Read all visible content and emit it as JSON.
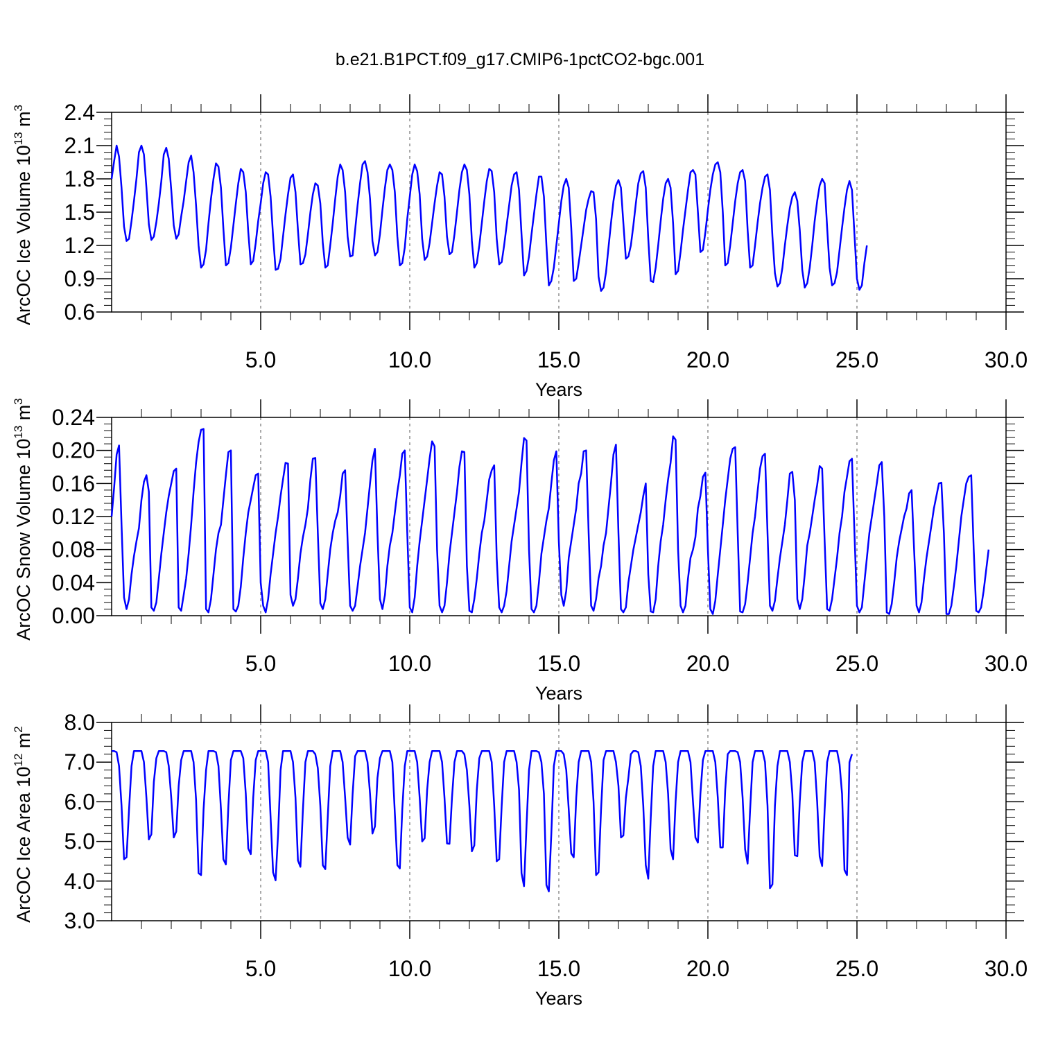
{
  "title": "b.e21.B1PCT.f09_g17.CMIP6-1pctCO2-bgc.001",
  "line_color": "#0000ff",
  "grid_style": "dashed vertical lines at major x ticks",
  "chart_data": [
    {
      "type": "line",
      "ylabel": {
        "base": "ArcOC Ice Volume 10",
        "exp": "13",
        "unit": " m",
        "unit_exp": "3"
      },
      "xlabel": "Years",
      "xlim": [
        0.0,
        30.0
      ],
      "ylim": [
        0.6,
        2.4
      ],
      "x_ticks": [
        "5.0",
        "10.0",
        "15.0",
        "20.0",
        "25.0",
        "30.0"
      ],
      "y_ticks": [
        "0.6",
        "0.9",
        "1.2",
        "1.5",
        "1.8",
        "2.1",
        "2.4"
      ],
      "series": [
        {
          "x_start": 0.0,
          "x_step": 0.08333,
          "values": [
            1.8,
            1.96,
            2.1,
            2.0,
            1.72,
            1.37,
            1.24,
            1.26,
            1.42,
            1.6,
            1.8,
            2.04,
            2.1,
            2.02,
            1.72,
            1.39,
            1.25,
            1.28,
            1.41,
            1.58,
            1.78,
            2.02,
            2.08,
            1.98,
            1.7,
            1.38,
            1.26,
            1.3,
            1.46,
            1.6,
            1.78,
            1.95,
            2.01,
            1.86,
            1.56,
            1.2,
            1.0,
            1.03,
            1.16,
            1.4,
            1.62,
            1.8,
            1.94,
            1.91,
            1.72,
            1.35,
            1.02,
            1.04,
            1.18,
            1.38,
            1.58,
            1.76,
            1.89,
            1.86,
            1.68,
            1.32,
            1.03,
            1.06,
            1.22,
            1.42,
            1.58,
            1.76,
            1.86,
            1.84,
            1.64,
            1.28,
            0.98,
            0.99,
            1.08,
            1.28,
            1.48,
            1.66,
            1.81,
            1.84,
            1.68,
            1.34,
            1.03,
            1.04,
            1.12,
            1.3,
            1.5,
            1.66,
            1.76,
            1.74,
            1.58,
            1.22,
            1.0,
            1.02,
            1.2,
            1.4,
            1.62,
            1.82,
            1.93,
            1.88,
            1.68,
            1.28,
            1.1,
            1.11,
            1.34,
            1.56,
            1.76,
            1.93,
            1.96,
            1.86,
            1.62,
            1.24,
            1.11,
            1.14,
            1.3,
            1.52,
            1.72,
            1.88,
            1.93,
            1.88,
            1.68,
            1.28,
            1.02,
            1.04,
            1.18,
            1.44,
            1.64,
            1.84,
            1.93,
            1.87,
            1.66,
            1.26,
            1.07,
            1.1,
            1.22,
            1.4,
            1.58,
            1.74,
            1.86,
            1.84,
            1.64,
            1.28,
            1.12,
            1.14,
            1.3,
            1.5,
            1.7,
            1.86,
            1.93,
            1.88,
            1.66,
            1.24,
            1.0,
            1.04,
            1.2,
            1.4,
            1.6,
            1.78,
            1.89,
            1.87,
            1.68,
            1.26,
            1.03,
            1.05,
            1.2,
            1.38,
            1.56,
            1.74,
            1.84,
            1.86,
            1.7,
            1.3,
            0.93,
            0.97,
            1.1,
            1.3,
            1.48,
            1.66,
            1.82,
            1.82,
            1.64,
            1.2,
            0.84,
            0.88,
            1.0,
            1.2,
            1.4,
            1.6,
            1.74,
            1.8,
            1.72,
            1.36,
            0.88,
            0.9,
            1.04,
            1.2,
            1.36,
            1.52,
            1.62,
            1.69,
            1.68,
            1.44,
            0.92,
            0.79,
            0.82,
            0.96,
            1.18,
            1.4,
            1.6,
            1.74,
            1.79,
            1.72,
            1.4,
            1.08,
            1.1,
            1.2,
            1.38,
            1.58,
            1.76,
            1.85,
            1.87,
            1.72,
            1.26,
            0.88,
            0.87,
            1.0,
            1.2,
            1.42,
            1.62,
            1.76,
            1.8,
            1.72,
            1.4,
            0.94,
            0.97,
            1.14,
            1.34,
            1.52,
            1.7,
            1.86,
            1.88,
            1.84,
            1.5,
            1.14,
            1.16,
            1.32,
            1.52,
            1.7,
            1.84,
            1.93,
            1.95,
            1.86,
            1.5,
            1.02,
            1.04,
            1.2,
            1.4,
            1.6,
            1.76,
            1.86,
            1.88,
            1.78,
            1.34,
            1.0,
            1.02,
            1.2,
            1.4,
            1.58,
            1.72,
            1.82,
            1.84,
            1.7,
            1.28,
            0.95,
            0.83,
            0.86,
            1.0,
            1.2,
            1.38,
            1.54,
            1.64,
            1.68,
            1.6,
            1.34,
            0.98,
            0.82,
            0.86,
            1.0,
            1.2,
            1.42,
            1.6,
            1.74,
            1.8,
            1.76,
            1.36,
            1.0,
            0.84,
            0.86,
            0.96,
            1.16,
            1.36,
            1.54,
            1.7,
            1.78,
            1.7,
            1.3,
            0.9,
            0.8,
            0.84,
            1.04,
            1.2
          ]
        }
      ]
    },
    {
      "type": "line",
      "ylabel": {
        "base": "ArcOC Snow Volume 10",
        "exp": "13",
        "unit": " m",
        "unit_exp": "3"
      },
      "xlabel": "Years",
      "xlim": [
        0.0,
        30.0
      ],
      "ylim": [
        0.0,
        0.24
      ],
      "x_ticks": [
        "5.0",
        "10.0",
        "15.0",
        "20.0",
        "25.0",
        "30.0"
      ],
      "y_ticks": [
        "0.00",
        "0.04",
        "0.08",
        "0.12",
        "0.16",
        "0.20",
        "0.24"
      ],
      "series": [
        {
          "x_start": 0.0,
          "x_step": 0.08333,
          "values": [
            0.12,
            0.155,
            0.195,
            0.206,
            0.11,
            0.022,
            0.008,
            0.02,
            0.05,
            0.072,
            0.09,
            0.106,
            0.14,
            0.162,
            0.17,
            0.15,
            0.01,
            0.006,
            0.016,
            0.045,
            0.075,
            0.1,
            0.125,
            0.145,
            0.16,
            0.175,
            0.178,
            0.01,
            0.006,
            0.025,
            0.045,
            0.075,
            0.11,
            0.15,
            0.185,
            0.21,
            0.225,
            0.226,
            0.008,
            0.004,
            0.02,
            0.05,
            0.08,
            0.1,
            0.11,
            0.14,
            0.17,
            0.198,
            0.2,
            0.008,
            0.005,
            0.012,
            0.035,
            0.07,
            0.1,
            0.125,
            0.14,
            0.155,
            0.17,
            0.172,
            0.04,
            0.012,
            0.004,
            0.02,
            0.05,
            0.075,
            0.1,
            0.12,
            0.145,
            0.165,
            0.185,
            0.184,
            0.025,
            0.012,
            0.02,
            0.045,
            0.075,
            0.095,
            0.11,
            0.13,
            0.165,
            0.19,
            0.191,
            0.1,
            0.015,
            0.008,
            0.02,
            0.05,
            0.08,
            0.1,
            0.115,
            0.125,
            0.145,
            0.172,
            0.176,
            0.09,
            0.012,
            0.006,
            0.012,
            0.035,
            0.06,
            0.08,
            0.1,
            0.13,
            0.16,
            0.188,
            0.202,
            0.1,
            0.02,
            0.008,
            0.025,
            0.06,
            0.085,
            0.1,
            0.125,
            0.15,
            0.17,
            0.196,
            0.2,
            0.1,
            0.01,
            0.004,
            0.022,
            0.06,
            0.09,
            0.115,
            0.14,
            0.165,
            0.19,
            0.211,
            0.205,
            0.08,
            0.012,
            0.004,
            0.012,
            0.04,
            0.075,
            0.1,
            0.125,
            0.15,
            0.18,
            0.199,
            0.198,
            0.06,
            0.006,
            0.004,
            0.02,
            0.045,
            0.075,
            0.1,
            0.115,
            0.14,
            0.165,
            0.176,
            0.182,
            0.07,
            0.01,
            0.004,
            0.012,
            0.03,
            0.06,
            0.09,
            0.11,
            0.13,
            0.15,
            0.185,
            0.215,
            0.212,
            0.08,
            0.008,
            0.004,
            0.012,
            0.04,
            0.075,
            0.095,
            0.115,
            0.13,
            0.16,
            0.188,
            0.199,
            0.09,
            0.025,
            0.012,
            0.03,
            0.07,
            0.09,
            0.11,
            0.13,
            0.16,
            0.172,
            0.199,
            0.2,
            0.1,
            0.012,
            0.006,
            0.02,
            0.045,
            0.06,
            0.085,
            0.1,
            0.13,
            0.16,
            0.195,
            0.207,
            0.1,
            0.008,
            0.004,
            0.01,
            0.04,
            0.06,
            0.08,
            0.095,
            0.11,
            0.125,
            0.145,
            0.16,
            0.05,
            0.005,
            0.004,
            0.02,
            0.06,
            0.09,
            0.11,
            0.14,
            0.165,
            0.185,
            0.217,
            0.213,
            0.08,
            0.012,
            0.004,
            0.012,
            0.045,
            0.07,
            0.08,
            0.095,
            0.13,
            0.145,
            0.168,
            0.173,
            0.08,
            0.008,
            0.002,
            0.018,
            0.05,
            0.08,
            0.11,
            0.14,
            0.165,
            0.19,
            0.202,
            0.204,
            0.1,
            0.005,
            0.004,
            0.014,
            0.04,
            0.07,
            0.1,
            0.12,
            0.15,
            0.178,
            0.193,
            0.196,
            0.1,
            0.012,
            0.006,
            0.018,
            0.045,
            0.07,
            0.09,
            0.11,
            0.14,
            0.172,
            0.174,
            0.14,
            0.02,
            0.008,
            0.02,
            0.05,
            0.085,
            0.1,
            0.12,
            0.14,
            0.158,
            0.181,
            0.178,
            0.09,
            0.008,
            0.006,
            0.02,
            0.045,
            0.07,
            0.1,
            0.12,
            0.15,
            0.168,
            0.187,
            0.19,
            0.1,
            0.012,
            0.004,
            0.01,
            0.04,
            0.07,
            0.1,
            0.12,
            0.14,
            0.16,
            0.182,
            0.186,
            0.12,
            0.004,
            0.002,
            0.014,
            0.04,
            0.07,
            0.09,
            0.105,
            0.12,
            0.13,
            0.148,
            0.152,
            0.08,
            0.012,
            0.004,
            0.016,
            0.045,
            0.07,
            0.09,
            0.11,
            0.13,
            0.145,
            0.16,
            0.161,
            0.1,
            0.002,
            0.002,
            0.012,
            0.035,
            0.06,
            0.09,
            0.12,
            0.14,
            0.16,
            0.168,
            0.17,
            0.08,
            0.006,
            0.004,
            0.01,
            0.03,
            0.055,
            0.08
          ]
        }
      ]
    },
    {
      "type": "line",
      "ylabel": {
        "base": "ArcOC Ice Area 10",
        "exp": "12",
        "unit": " m",
        "unit_exp": "2"
      },
      "xlabel": "Years",
      "xlim": [
        0.0,
        30.0
      ],
      "ylim": [
        3.0,
        8.0
      ],
      "x_ticks": [
        "5.0",
        "10.0",
        "15.0",
        "20.0",
        "25.0",
        "30.0"
      ],
      "y_ticks": [
        "3.0",
        "4.0",
        "5.0",
        "6.0",
        "7.0",
        "8.0"
      ],
      "series": [
        {
          "x_start": 0.0,
          "x_step": 0.08333,
          "values": [
            7.28,
            7.28,
            7.25,
            6.9,
            5.9,
            4.55,
            4.6,
            5.8,
            6.9,
            7.28,
            7.28,
            7.28,
            7.28,
            7.0,
            6.1,
            5.05,
            5.18,
            6.5,
            7.1,
            7.28,
            7.28,
            7.28,
            7.25,
            6.9,
            6.1,
            5.1,
            5.25,
            6.4,
            7.05,
            7.28,
            7.28,
            7.28,
            7.28,
            7.0,
            6.05,
            4.2,
            4.15,
            5.8,
            6.8,
            7.28,
            7.28,
            7.28,
            7.25,
            6.9,
            5.8,
            4.55,
            4.42,
            5.9,
            7.05,
            7.28,
            7.28,
            7.28,
            7.28,
            7.1,
            6.2,
            4.82,
            4.68,
            6.1,
            7.05,
            7.28,
            7.28,
            7.28,
            7.28,
            7.0,
            5.6,
            4.22,
            4.02,
            5.2,
            6.8,
            7.28,
            7.28,
            7.28,
            7.28,
            7.0,
            6.1,
            4.52,
            4.36,
            5.8,
            7.0,
            7.28,
            7.28,
            7.28,
            7.2,
            6.85,
            5.9,
            4.4,
            4.3,
            5.6,
            6.9,
            7.28,
            7.28,
            7.28,
            7.28,
            7.0,
            6.1,
            5.1,
            4.92,
            6.2,
            7.15,
            7.28,
            7.28,
            7.28,
            7.28,
            7.0,
            6.2,
            5.2,
            5.38,
            6.6,
            7.1,
            7.28,
            7.28,
            7.28,
            7.28,
            7.0,
            5.7,
            4.4,
            4.32,
            5.8,
            6.9,
            7.28,
            7.28,
            7.28,
            7.28,
            7.0,
            6.1,
            5.0,
            5.08,
            6.3,
            7.0,
            7.28,
            7.28,
            7.28,
            7.28,
            7.0,
            6.1,
            4.95,
            4.94,
            6.1,
            7.0,
            7.28,
            7.28,
            7.28,
            7.2,
            6.8,
            5.9,
            4.75,
            4.9,
            6.3,
            7.1,
            7.28,
            7.28,
            7.28,
            7.28,
            7.0,
            5.9,
            4.5,
            4.55,
            5.9,
            7.0,
            7.28,
            7.28,
            7.28,
            7.28,
            7.0,
            6.3,
            4.2,
            3.87,
            5.4,
            6.8,
            7.28,
            7.28,
            7.28,
            7.25,
            7.0,
            6.2,
            3.9,
            3.74,
            5.2,
            6.9,
            7.28,
            7.28,
            7.28,
            7.2,
            6.8,
            5.8,
            4.7,
            4.6,
            6.1,
            7.0,
            7.28,
            7.28,
            7.28,
            7.28,
            7.0,
            6.0,
            4.15,
            4.22,
            5.8,
            7.05,
            7.28,
            7.28,
            7.28,
            7.28,
            7.0,
            6.4,
            5.1,
            5.15,
            6.1,
            6.6,
            7.2,
            7.28,
            7.28,
            7.25,
            6.9,
            5.9,
            4.4,
            4.06,
            5.6,
            6.9,
            7.28,
            7.28,
            7.28,
            7.28,
            7.0,
            6.2,
            4.8,
            4.55,
            6.0,
            7.0,
            7.28,
            7.28,
            7.28,
            7.28,
            7.0,
            6.0,
            5.1,
            4.97,
            6.2,
            7.05,
            7.28,
            7.28,
            7.28,
            7.28,
            7.0,
            6.1,
            4.85,
            4.85,
            6.3,
            7.2,
            7.28,
            7.28,
            7.28,
            7.25,
            7.0,
            6.1,
            4.8,
            4.44,
            5.8,
            7.0,
            7.28,
            7.28,
            7.28,
            7.28,
            7.0,
            5.9,
            3.82,
            3.92,
            5.9,
            6.9,
            7.28,
            7.28,
            7.28,
            7.28,
            7.0,
            6.2,
            4.65,
            4.63,
            6.0,
            7.0,
            7.28,
            7.28,
            7.28,
            7.28,
            7.0,
            6.0,
            4.62,
            4.38,
            5.8,
            7.0,
            7.28,
            7.28,
            7.28,
            7.28,
            6.95,
            6.2,
            4.28,
            4.15,
            7.0,
            7.2
          ]
        }
      ]
    }
  ]
}
